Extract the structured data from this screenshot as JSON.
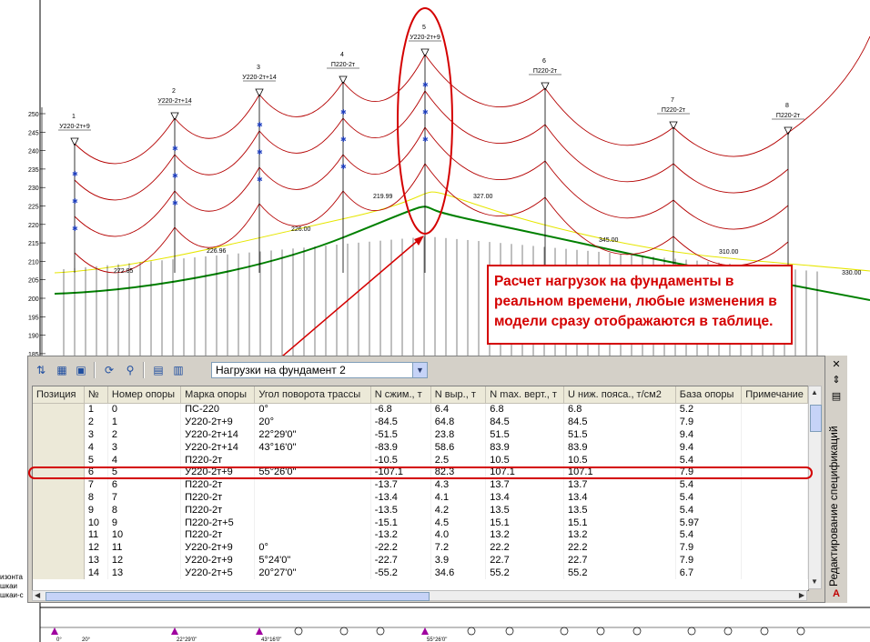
{
  "drawing": {
    "y_axis_ticks": [
      "250",
      "245",
      "240",
      "235",
      "230",
      "225",
      "220",
      "215",
      "210",
      "205",
      "200",
      "195",
      "190",
      "185"
    ],
    "supports": [
      {
        "num": "1",
        "type": "У220-2т+9"
      },
      {
        "num": "2",
        "type": "У220-2т+14"
      },
      {
        "num": "3",
        "type": "У220-2т+14"
      },
      {
        "num": "4",
        "type": "П220-2т"
      },
      {
        "num": "5",
        "type": "У220-2т+9"
      },
      {
        "num": "6",
        "type": "П220-2т"
      },
      {
        "num": "7",
        "type": "П220-2т"
      },
      {
        "num": "8",
        "type": "П220-2т"
      }
    ],
    "labels": [
      "272.85",
      "226.96",
      "226.00",
      "219.99",
      "327.00",
      "345.00",
      "310.00",
      "330.00"
    ],
    "left_fragments": [
      "изонта",
      "шкаи",
      "шкаи-с"
    ],
    "bottom_angles": [
      "0°",
      "20°",
      "22°29'0\"",
      "43°16'0\"",
      "55°26'0\""
    ]
  },
  "annotation": {
    "text": "Расчет нагрузок на фундаменты в реальном времени, любые изменения в модели сразу отображаются в таблице."
  },
  "palette": {
    "title": "Редактирование спецификаций",
    "dropdown_value": "Нагрузки на фундамент 2",
    "columns": [
      "Позиция",
      "№",
      "Номер опоры",
      "Марка опоры",
      "Угол поворота трассы",
      "N сжим., т",
      "N выр., т",
      "N max. верт., т",
      "U ниж. пояса., т/см2",
      "База опоры",
      "Примечание"
    ],
    "rows": [
      [
        "",
        "1",
        "0",
        "ПС-220",
        "0°",
        "-6.8",
        "6.4",
        "6.8",
        "6.8",
        "5.2",
        ""
      ],
      [
        "",
        "2",
        "1",
        "У220-2т+9",
        "20°",
        "-84.5",
        "64.8",
        "84.5",
        "84.5",
        "7.9",
        ""
      ],
      [
        "",
        "3",
        "2",
        "У220-2т+14",
        "22°29'0\"",
        "-51.5",
        "23.8",
        "51.5",
        "51.5",
        "9.4",
        ""
      ],
      [
        "",
        "4",
        "3",
        "У220-2т+14",
        "43°16'0\"",
        "-83.9",
        "58.6",
        "83.9",
        "83.9",
        "9.4",
        ""
      ],
      [
        "",
        "5",
        "4",
        "П220-2т",
        "",
        "-10.5",
        "2.5",
        "10.5",
        "10.5",
        "5.4",
        ""
      ],
      [
        "",
        "6",
        "5",
        "У220-2т+9",
        "55°26'0\"",
        "-107.1",
        "82.3",
        "107.1",
        "107.1",
        "7.9",
        ""
      ],
      [
        "",
        "7",
        "6",
        "П220-2т",
        "",
        "-13.7",
        "4.3",
        "13.7",
        "13.7",
        "5.4",
        ""
      ],
      [
        "",
        "8",
        "7",
        "П220-2т",
        "",
        "-13.4",
        "4.1",
        "13.4",
        "13.4",
        "5.4",
        ""
      ],
      [
        "",
        "9",
        "8",
        "П220-2т",
        "",
        "-13.5",
        "4.2",
        "13.5",
        "13.5",
        "5.4",
        ""
      ],
      [
        "",
        "10",
        "9",
        "П220-2т+5",
        "",
        "-15.1",
        "4.5",
        "15.1",
        "15.1",
        "5.97",
        ""
      ],
      [
        "",
        "11",
        "10",
        "П220-2т",
        "",
        "-13.2",
        "4.0",
        "13.2",
        "13.2",
        "5.4",
        ""
      ],
      [
        "",
        "12",
        "11",
        "У220-2т+9",
        "0°",
        "-22.2",
        "7.2",
        "22.2",
        "22.2",
        "7.9",
        ""
      ],
      [
        "",
        "13",
        "12",
        "У220-2т+9",
        "5°24'0\"",
        "-22.7",
        "3.9",
        "22.7",
        "22.7",
        "7.9",
        ""
      ],
      [
        "",
        "14",
        "13",
        "У220-2т+5",
        "20°27'0\"",
        "-55.2",
        "34.6",
        "55.2",
        "55.2",
        "6.7",
        ""
      ]
    ]
  },
  "colors": {
    "accent": "#d40000",
    "wire": "#b40000",
    "ground": "#008000",
    "elevation": "#e6e600",
    "marker": "#1f3fbf"
  }
}
